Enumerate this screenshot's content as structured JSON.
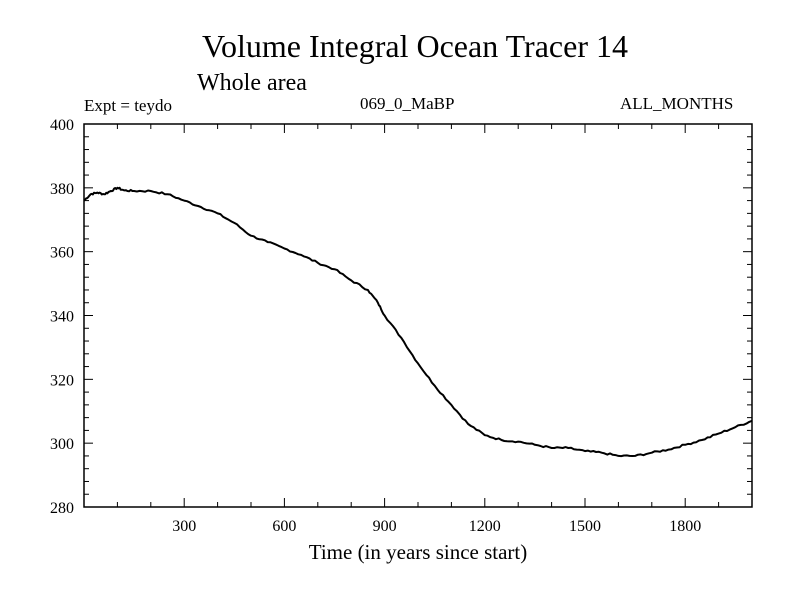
{
  "chart_data": {
    "type": "line",
    "title": "Volume Integral Ocean Tracer 14",
    "subtitle": "Whole area",
    "annotations": {
      "expt": "Expt = teydo",
      "run": "069_0_MaBP",
      "months": "ALL_MONTHS"
    },
    "xlabel": "Time (in years since start)",
    "ylabel": "",
    "xlim": [
      0,
      2000
    ],
    "ylim": [
      280,
      400
    ],
    "x_ticks": [
      300,
      600,
      900,
      1200,
      1500,
      1800
    ],
    "x_tick_labels": [
      "300",
      "600",
      "900",
      "1200",
      "1500",
      "1800"
    ],
    "y_ticks": [
      280,
      300,
      320,
      340,
      360,
      380,
      400
    ],
    "y_tick_labels": [
      "280",
      "300",
      "320",
      "340",
      "360",
      "380",
      "400"
    ],
    "grid": false,
    "series": [
      {
        "name": "Tracer 14",
        "x": [
          0,
          20,
          40,
          60,
          80,
          100,
          120,
          150,
          200,
          250,
          300,
          350,
          400,
          450,
          500,
          550,
          600,
          650,
          700,
          750,
          800,
          850,
          880,
          900,
          950,
          1000,
          1050,
          1100,
          1150,
          1200,
          1250,
          1300,
          1350,
          1400,
          1450,
          1500,
          1550,
          1600,
          1650,
          1700,
          1750,
          1800,
          1850,
          1900,
          1950,
          2000
        ],
        "y": [
          376,
          378,
          378.5,
          378,
          379,
          380,
          379.2,
          379,
          379,
          378,
          376,
          374,
          372,
          369,
          365,
          363,
          361,
          359,
          356.5,
          354.5,
          351,
          348,
          344,
          340,
          333,
          325,
          318,
          312,
          306,
          302.5,
          301,
          300.5,
          299.5,
          298.5,
          298.5,
          297.5,
          297,
          296,
          296,
          297,
          298,
          299.5,
          301,
          303,
          305,
          307
        ]
      }
    ]
  }
}
